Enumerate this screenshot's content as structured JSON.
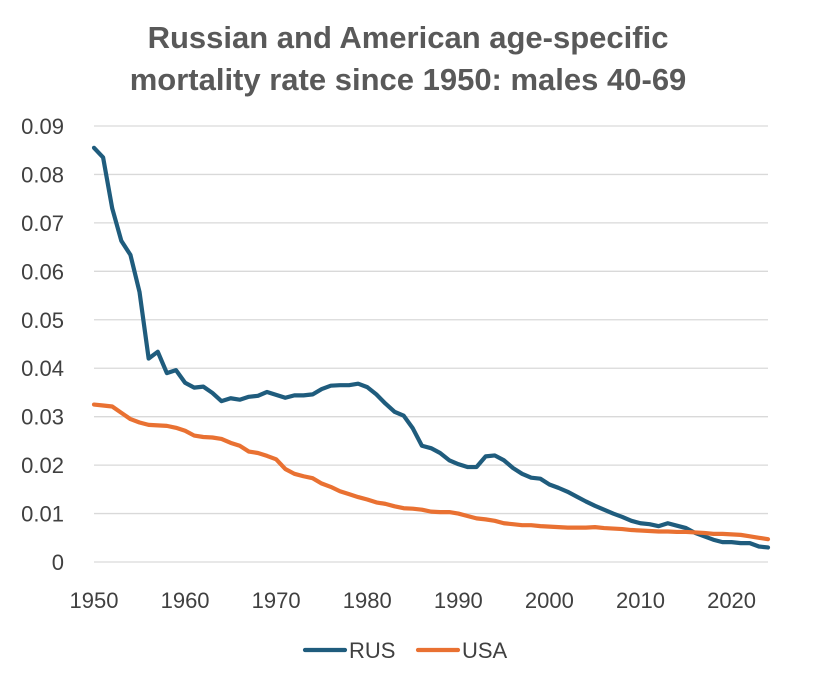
{
  "chart_data": {
    "type": "line",
    "title_line1": "Russian and American age-specific",
    "title_line2": "mortality rate since 1950: males 40-69",
    "xlim": [
      1950,
      2024
    ],
    "ylim": [
      0,
      0.09
    ],
    "x_ticks": [
      "1950",
      "1960",
      "1970",
      "1980",
      "1990",
      "2000",
      "2010",
      "2020"
    ],
    "y_ticks": [
      "0",
      "0.01",
      "0.02",
      "0.03",
      "0.04",
      "0.05",
      "0.06",
      "0.07",
      "0.08",
      "0.09"
    ],
    "grid": true,
    "legend_position": "bottom",
    "x": [
      1950,
      1951,
      1952,
      1953,
      1954,
      1955,
      1956,
      1957,
      1958,
      1959,
      1960,
      1961,
      1962,
      1963,
      1964,
      1965,
      1966,
      1967,
      1968,
      1969,
      1970,
      1971,
      1972,
      1973,
      1974,
      1975,
      1976,
      1977,
      1978,
      1979,
      1980,
      1981,
      1982,
      1983,
      1984,
      1985,
      1986,
      1987,
      1988,
      1989,
      1990,
      1991,
      1992,
      1993,
      1994,
      1995,
      1996,
      1997,
      1998,
      1999,
      2000,
      2001,
      2002,
      2003,
      2004,
      2005,
      2006,
      2007,
      2008,
      2009,
      2010,
      2011,
      2012,
      2013,
      2014,
      2015,
      2016,
      2017,
      2018,
      2019,
      2020,
      2021,
      2022,
      2023,
      2024
    ],
    "series": [
      {
        "name": "RUS",
        "color": "#1f5c7d",
        "values": [
          0.0855,
          0.0835,
          0.073,
          0.0663,
          0.0634,
          0.0557,
          0.042,
          0.0434,
          0.039,
          0.0396,
          0.037,
          0.036,
          0.0362,
          0.0349,
          0.0332,
          0.0338,
          0.0335,
          0.0341,
          0.0343,
          0.0351,
          0.0345,
          0.0339,
          0.0344,
          0.0344,
          0.0346,
          0.0357,
          0.0364,
          0.0365,
          0.0365,
          0.0368,
          0.0361,
          0.0346,
          0.0327,
          0.031,
          0.0302,
          0.0276,
          0.024,
          0.0235,
          0.0225,
          0.021,
          0.0202,
          0.0196,
          0.0196,
          0.0218,
          0.022,
          0.021,
          0.0194,
          0.0182,
          0.0174,
          0.0172,
          0.016,
          0.0153,
          0.0145,
          0.0135,
          0.0125,
          0.0116,
          0.0108,
          0.01,
          0.0093,
          0.0085,
          0.008,
          0.0078,
          0.0074,
          0.008,
          0.0075,
          0.007,
          0.006,
          0.0053,
          0.0046,
          0.0041,
          0.0041,
          0.0039,
          0.0039,
          0.0032,
          0.003
        ]
      },
      {
        "name": "USA",
        "color": "#e97132",
        "values": [
          0.0325,
          0.0323,
          0.0321,
          0.0308,
          0.0295,
          0.0288,
          0.0283,
          0.0282,
          0.0281,
          0.0277,
          0.0271,
          0.0261,
          0.0258,
          0.0257,
          0.0254,
          0.0246,
          0.024,
          0.0228,
          0.0225,
          0.0219,
          0.0212,
          0.0192,
          0.0182,
          0.0177,
          0.0173,
          0.0162,
          0.0155,
          0.0146,
          0.014,
          0.0134,
          0.0129,
          0.0123,
          0.012,
          0.0115,
          0.0111,
          0.011,
          0.0108,
          0.0104,
          0.0103,
          0.0103,
          0.01,
          0.0095,
          0.009,
          0.0088,
          0.0085,
          0.008,
          0.0078,
          0.0076,
          0.0076,
          0.0074,
          0.0073,
          0.0072,
          0.0071,
          0.0071,
          0.0071,
          0.0072,
          0.007,
          0.0069,
          0.0068,
          0.0066,
          0.0065,
          0.0064,
          0.0063,
          0.0063,
          0.0062,
          0.0062,
          0.0061,
          0.006,
          0.0058,
          0.0058,
          0.0057,
          0.0056,
          0.0053,
          0.005,
          0.0047
        ]
      }
    ]
  }
}
